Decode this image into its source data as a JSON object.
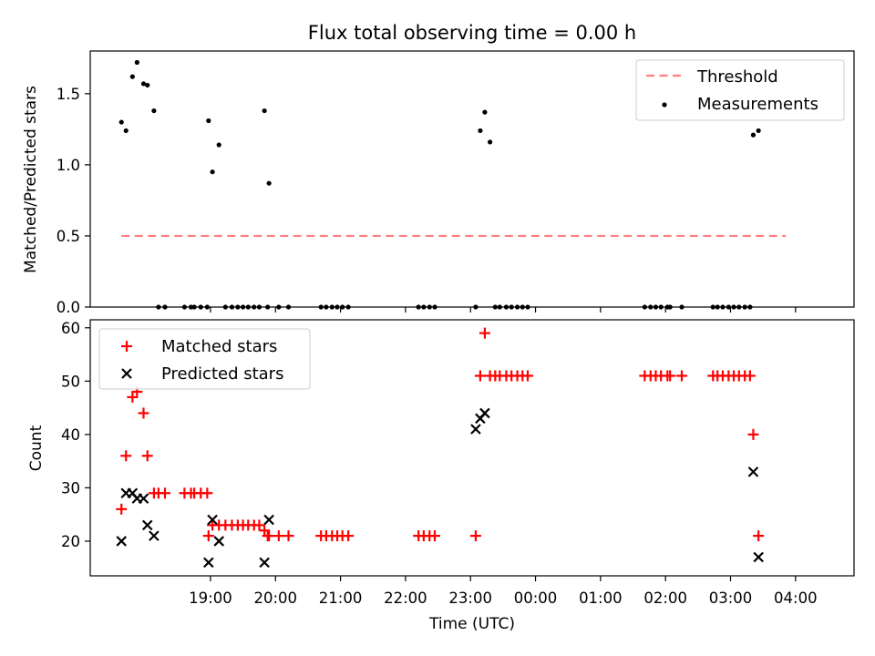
{
  "chart_data": [
    {
      "type": "scatter",
      "title": "Flux total observing time = 0.00 h",
      "xlabel": "",
      "ylabel": "Matched/Predicted stars",
      "x_unit": "hours since 18:00 UTC",
      "xlim": [
        -0.85,
        10.9
      ],
      "ylim": [
        0.0,
        1.8
      ],
      "yticks": [
        0.0,
        0.5,
        1.0,
        1.5
      ],
      "ytick_labels": [
        "0.0",
        "0.5",
        "1.0",
        "1.5"
      ],
      "legend_position": "top-right",
      "legend": [
        "Threshold",
        "Measurements"
      ],
      "threshold": {
        "name": "Threshold",
        "value": 0.5,
        "x_range": [
          -0.37,
          9.85
        ],
        "color": "#ff7f7f"
      },
      "measurements": {
        "name": "Measurements",
        "color": "#000000",
        "x": [
          -0.37,
          -0.3,
          -0.2,
          -0.13,
          -0.03,
          0.03,
          0.13,
          0.2,
          0.3,
          0.6,
          0.7,
          0.75,
          0.85,
          0.95,
          0.97,
          1.03,
          1.13,
          1.23,
          1.33,
          1.42,
          1.5,
          1.58,
          1.67,
          1.75,
          1.83,
          1.88,
          1.9,
          2.05,
          2.2,
          2.7,
          2.78,
          2.87,
          2.95,
          3.03,
          3.12,
          4.2,
          4.28,
          4.37,
          4.45,
          5.08,
          5.15,
          5.22,
          5.3,
          5.38,
          5.45,
          5.55,
          5.63,
          5.72,
          5.8,
          5.88,
          7.68,
          7.77,
          7.85,
          7.93,
          8.03,
          8.07,
          8.25,
          8.73,
          8.8,
          8.88,
          8.97,
          9.05,
          9.13,
          9.22,
          9.3,
          9.35,
          9.43
        ],
        "y": [
          1.3,
          1.24,
          1.62,
          1.72,
          1.57,
          1.56,
          1.38,
          0.0,
          0.0,
          0.0,
          0.0,
          0.0,
          0.0,
          0.0,
          1.31,
          0.95,
          1.14,
          0.0,
          0.0,
          0.0,
          0.0,
          0.0,
          0.0,
          0.0,
          1.38,
          0.0,
          0.87,
          0.0,
          0.0,
          0.0,
          0.0,
          0.0,
          0.0,
          0.0,
          0.0,
          0.0,
          0.0,
          0.0,
          0.0,
          0.0,
          1.24,
          1.37,
          1.16,
          0.0,
          0.0,
          0.0,
          0.0,
          0.0,
          0.0,
          0.0,
          0.0,
          0.0,
          0.0,
          0.0,
          0.0,
          0.0,
          0.0,
          0.0,
          0.0,
          0.0,
          0.0,
          0.0,
          0.0,
          0.0,
          0.0,
          1.21,
          1.24
        ]
      }
    },
    {
      "type": "scatter",
      "title": "",
      "xlabel": "Time (UTC)",
      "ylabel": "Count",
      "x_unit": "hours since 18:00 UTC",
      "xlim": [
        -0.85,
        10.9
      ],
      "ylim": [
        13.5,
        61.5
      ],
      "yticks": [
        20,
        30,
        40,
        50,
        60
      ],
      "ytick_labels": [
        "20",
        "30",
        "40",
        "50",
        "60"
      ],
      "xticks": [
        1,
        2,
        3,
        4,
        5,
        6,
        7,
        8,
        9,
        10
      ],
      "xtick_labels": [
        "19:00",
        "20:00",
        "21:00",
        "22:00",
        "23:00",
        "00:00",
        "01:00",
        "02:00",
        "03:00",
        "04:00"
      ],
      "legend_position": "top-left",
      "legend": [
        "Matched stars",
        "Predicted stars"
      ],
      "series": [
        {
          "name": "Matched stars",
          "marker": "plus",
          "color": "#ff0000",
          "x": [
            -0.37,
            -0.3,
            -0.2,
            -0.13,
            -0.03,
            0.03,
            0.13,
            0.2,
            0.3,
            0.6,
            0.7,
            0.75,
            0.85,
            0.95,
            0.97,
            1.03,
            1.13,
            1.23,
            1.33,
            1.42,
            1.5,
            1.58,
            1.67,
            1.75,
            1.83,
            1.88,
            1.9,
            2.05,
            2.2,
            2.7,
            2.78,
            2.87,
            2.95,
            3.03,
            3.12,
            4.2,
            4.28,
            4.37,
            4.45,
            5.08,
            5.15,
            5.22,
            5.3,
            5.38,
            5.45,
            5.55,
            5.63,
            5.72,
            5.8,
            5.88,
            7.68,
            7.77,
            7.85,
            7.93,
            8.03,
            8.07,
            8.25,
            8.73,
            8.8,
            8.88,
            8.97,
            9.05,
            9.13,
            9.22,
            9.3,
            9.35,
            9.43
          ],
          "y": [
            26,
            36,
            47,
            48,
            44,
            36,
            29,
            29,
            29,
            29,
            29,
            29,
            29,
            29,
            21,
            23,
            23,
            23,
            23,
            23,
            23,
            23,
            23,
            23,
            22,
            21,
            21,
            21,
            21,
            21,
            21,
            21,
            21,
            21,
            21,
            21,
            21,
            21,
            21,
            21,
            51,
            59,
            51,
            51,
            51,
            51,
            51,
            51,
            51,
            51,
            51,
            51,
            51,
            51,
            51,
            51,
            51,
            51,
            51,
            51,
            51,
            51,
            51,
            51,
            51,
            40,
            21
          ]
        },
        {
          "name": "Predicted stars",
          "marker": "x",
          "color": "#000000",
          "x": [
            -0.37,
            -0.3,
            -0.2,
            -0.13,
            -0.03,
            0.03,
            0.13,
            0.97,
            1.03,
            1.13,
            1.83,
            1.9,
            5.08,
            5.15,
            5.22,
            9.35,
            9.43
          ],
          "y": [
            20,
            29,
            29,
            28,
            28,
            23,
            21,
            16,
            24,
            20,
            16,
            24,
            41,
            43,
            44,
            33,
            17
          ]
        }
      ]
    }
  ]
}
